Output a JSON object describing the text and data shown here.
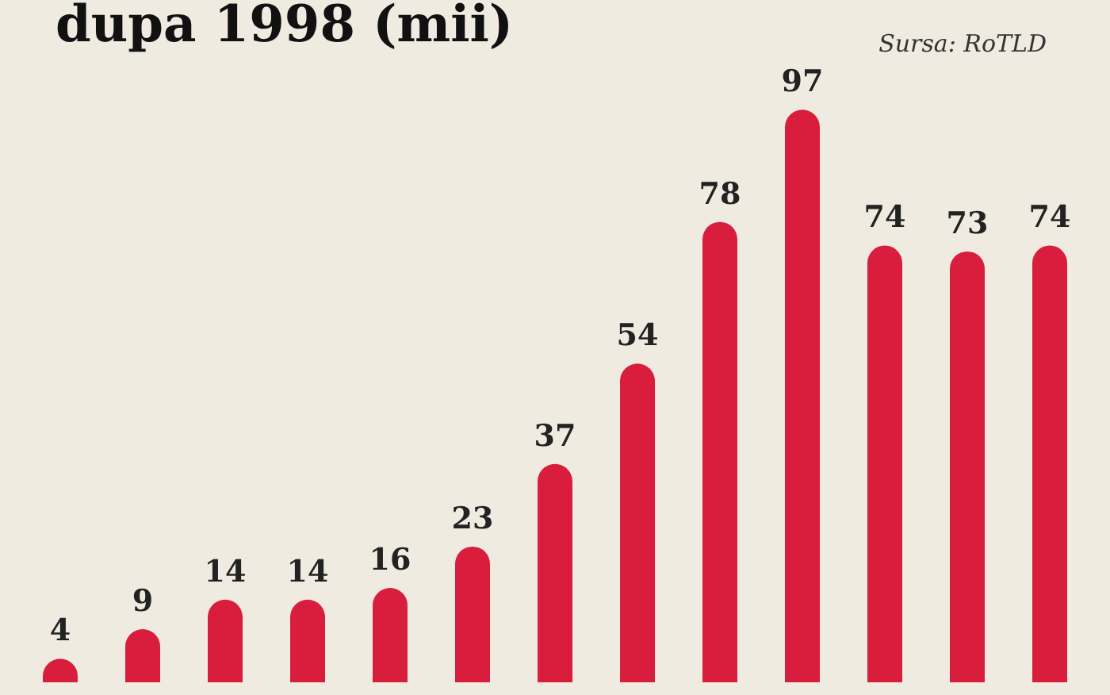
{
  "chart_data": {
    "type": "bar",
    "title": "dupa 1998 (mii)",
    "annotations": [
      "Sursa: RoTLD"
    ],
    "categories": [
      null,
      null,
      null,
      null,
      null,
      null,
      null,
      null,
      null,
      null,
      null,
      null,
      null
    ],
    "values": [
      4,
      9,
      14,
      14,
      16,
      23,
      37,
      54,
      78,
      97,
      74,
      73,
      74
    ],
    "color": "#d81e3c",
    "data_labels": true
  }
}
